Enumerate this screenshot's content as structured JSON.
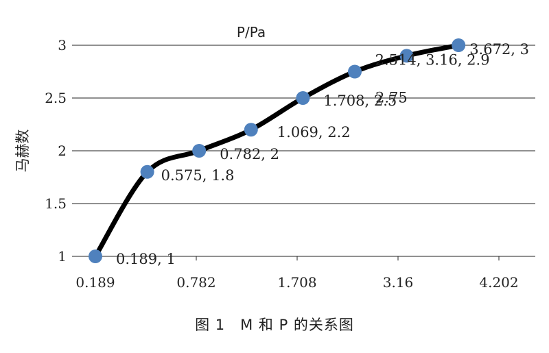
{
  "figure_caption": "图 1　M 和 P 的关系图",
  "chart_data": {
    "type": "line",
    "title": "P/Pa",
    "xlabel": "",
    "ylabel": "马赫数",
    "categories": [
      "0.189",
      "0.575",
      "0.782",
      "1.069",
      "1.708",
      "2.514",
      "3.16",
      "3.672"
    ],
    "x_tick_labels": [
      "0.189",
      "0.782",
      "1.708",
      "3.16",
      "4.202"
    ],
    "y_tick_labels": [
      "1",
      "1.5",
      "2",
      "2.5",
      "3"
    ],
    "ylim": [
      1,
      3
    ],
    "grid": "horizontal",
    "smooth": true,
    "series": [
      {
        "values": [
          1,
          1.8,
          2,
          2.2,
          2.5,
          2.75,
          2.9,
          3
        ]
      }
    ],
    "data_labels": [
      "0.189, 1",
      "0.575, 1.8",
      "0.782, 2",
      "1.069, 2.2",
      "1.708, 2.5",
      "2.75",
      "2.514, 3.16, 2.9",
      "3.672, 3"
    ],
    "colors": {
      "line": "#000000",
      "marker": "#4f81bd",
      "grid": "#222222",
      "text": "#222222"
    }
  }
}
